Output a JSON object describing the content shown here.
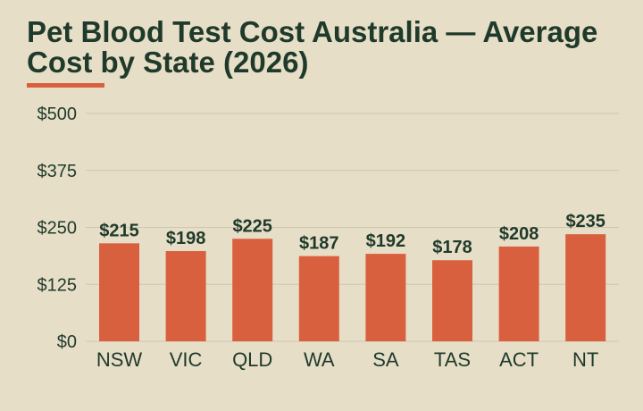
{
  "chart_data": {
    "type": "bar",
    "title": "Pet Blood Test Cost Australia — Average Cost by State (2026)",
    "categories": [
      "NSW",
      "VIC",
      "QLD",
      "WA",
      "SA",
      "TAS",
      "ACT",
      "NT"
    ],
    "values": [
      215,
      198,
      225,
      187,
      192,
      178,
      208,
      235
    ],
    "data_labels": [
      "$215",
      "$198",
      "$225",
      "$187",
      "$192",
      "$178",
      "$208",
      "$235"
    ],
    "ylim": [
      0,
      500
    ],
    "yticks": [
      0,
      125,
      250,
      375,
      500
    ],
    "ytick_labels": [
      "$0",
      "$125",
      "$250",
      "$375",
      "$500"
    ],
    "xlabel": "",
    "ylabel": "",
    "grid": true,
    "legend": "none"
  },
  "colors": {
    "background": "#e7dec7",
    "bar": "#d9603e",
    "text": "#1f3a2b",
    "grid": "#cdc5ae",
    "accent_underline": "#d9603e"
  }
}
